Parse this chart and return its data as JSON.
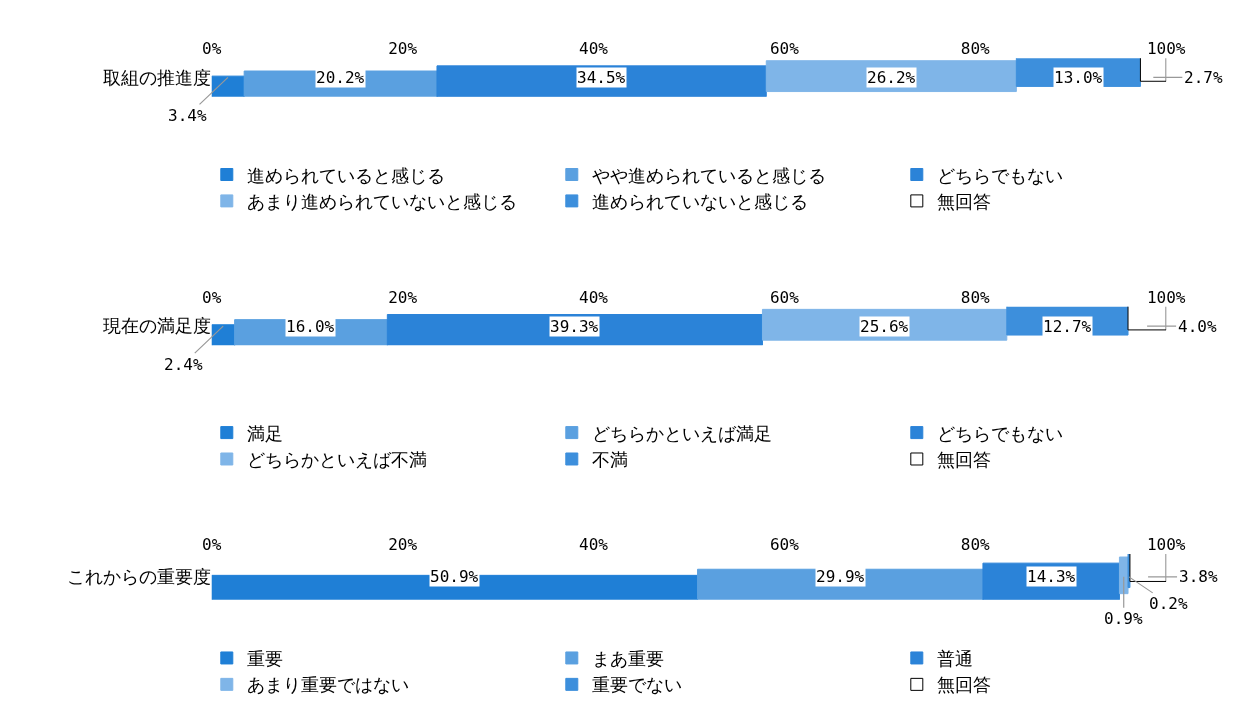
{
  "chart_data": [
    {
      "type": "bar",
      "orientation": "horizontal",
      "stacked": true,
      "categories": [
        "取組の推進度"
      ],
      "xlim": [
        0,
        100
      ],
      "xticks": [
        {
          "value": 0,
          "label": "0%"
        },
        {
          "value": 20,
          "label": "20%"
        },
        {
          "value": 40,
          "label": "40%"
        },
        {
          "value": 60,
          "label": "60%"
        },
        {
          "value": 80,
          "label": "80%"
        },
        {
          "value": 100,
          "label": "100%"
        }
      ],
      "legend": "bottom",
      "series": [
        {
          "name": "進められていると感じる",
          "color": "#1f7fd6",
          "values": [
            3.4
          ],
          "value_labels": [
            "3.4%"
          ]
        },
        {
          "name": "やや進められていると感じる",
          "color": "#5aa0e0",
          "values": [
            20.2
          ],
          "value_labels": [
            "20.2%"
          ]
        },
        {
          "name": "どちらでもない",
          "color": "#2b83d8",
          "values": [
            34.5
          ],
          "value_labels": [
            "34.5%"
          ]
        },
        {
          "name": "あまり進められていないと感じる",
          "color": "#7fb5e8",
          "values": [
            26.2
          ],
          "value_labels": [
            "26.2%"
          ]
        },
        {
          "name": "進められていないと感じる",
          "color": "#3d8fdc",
          "values": [
            13.0
          ],
          "value_labels": [
            "13.0%"
          ]
        },
        {
          "name": "無回答",
          "color": "#ffffff",
          "values": [
            2.7
          ],
          "value_labels": [
            "2.7%"
          ]
        }
      ]
    },
    {
      "type": "bar",
      "orientation": "horizontal",
      "stacked": true,
      "categories": [
        "現在の満足度"
      ],
      "xlim": [
        0,
        100
      ],
      "xticks": [
        {
          "value": 0,
          "label": "0%"
        },
        {
          "value": 20,
          "label": "20%"
        },
        {
          "value": 40,
          "label": "40%"
        },
        {
          "value": 60,
          "label": "60%"
        },
        {
          "value": 80,
          "label": "80%"
        },
        {
          "value": 100,
          "label": "100%"
        }
      ],
      "legend": "bottom",
      "series": [
        {
          "name": "満足",
          "color": "#1f7fd6",
          "values": [
            2.4
          ],
          "value_labels": [
            "2.4%"
          ]
        },
        {
          "name": "どちらかといえば満足",
          "color": "#5aa0e0",
          "values": [
            16.0
          ],
          "value_labels": [
            "16.0%"
          ]
        },
        {
          "name": "どちらでもない",
          "color": "#2b83d8",
          "values": [
            39.3
          ],
          "value_labels": [
            "39.3%"
          ]
        },
        {
          "name": "どちらかといえば不満",
          "color": "#7fb5e8",
          "values": [
            25.6
          ],
          "value_labels": [
            "25.6%"
          ]
        },
        {
          "name": "不満",
          "color": "#3d8fdc",
          "values": [
            12.7
          ],
          "value_labels": [
            "12.7%"
          ]
        },
        {
          "name": "無回答",
          "color": "#ffffff",
          "values": [
            4.0
          ],
          "value_labels": [
            "4.0%"
          ]
        }
      ]
    },
    {
      "type": "bar",
      "orientation": "horizontal",
      "stacked": true,
      "categories": [
        "これからの重要度"
      ],
      "xlim": [
        0,
        100
      ],
      "xticks": [
        {
          "value": 0,
          "label": "0%"
        },
        {
          "value": 20,
          "label": "20%"
        },
        {
          "value": 40,
          "label": "40%"
        },
        {
          "value": 60,
          "label": "60%"
        },
        {
          "value": 80,
          "label": "80%"
        },
        {
          "value": 100,
          "label": "100%"
        }
      ],
      "legend": "bottom",
      "series": [
        {
          "name": "重要",
          "color": "#1f7fd6",
          "values": [
            50.9
          ],
          "value_labels": [
            "50.9%"
          ]
        },
        {
          "name": "まあ重要",
          "color": "#5aa0e0",
          "values": [
            29.9
          ],
          "value_labels": [
            "29.9%"
          ]
        },
        {
          "name": "普通",
          "color": "#2b83d8",
          "values": [
            14.3
          ],
          "value_labels": [
            "14.3%"
          ]
        },
        {
          "name": "あまり重要ではない",
          "color": "#7fb5e8",
          "values": [
            0.9
          ],
          "value_labels": [
            "0.9%"
          ]
        },
        {
          "name": "重要でない",
          "color": "#3d8fdc",
          "values": [
            0.2
          ],
          "value_labels": [
            "0.2%"
          ]
        },
        {
          "name": "無回答",
          "color": "#ffffff",
          "values": [
            3.8
          ],
          "value_labels": [
            "3.8%"
          ]
        }
      ]
    }
  ]
}
